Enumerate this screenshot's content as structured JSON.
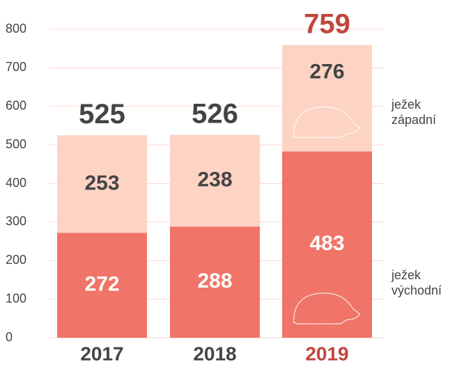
{
  "chart_data": {
    "type": "stacked_bar",
    "categories": [
      "2017",
      "2018",
      "2019"
    ],
    "series": [
      {
        "name": "ježek východní",
        "color": "#f07467",
        "values": [
          272,
          288,
          483
        ]
      },
      {
        "name": "ježek západní",
        "color": "#fdd3c4",
        "values": [
          253,
          238,
          276
        ]
      }
    ],
    "totals": [
      525,
      526,
      759
    ],
    "highlight": "2019",
    "highlight_color": "#c1463d",
    "ylim": [
      0,
      800
    ],
    "yticks": [
      0,
      100,
      200,
      300,
      400,
      500,
      600,
      700,
      800
    ],
    "grid": true
  }
}
